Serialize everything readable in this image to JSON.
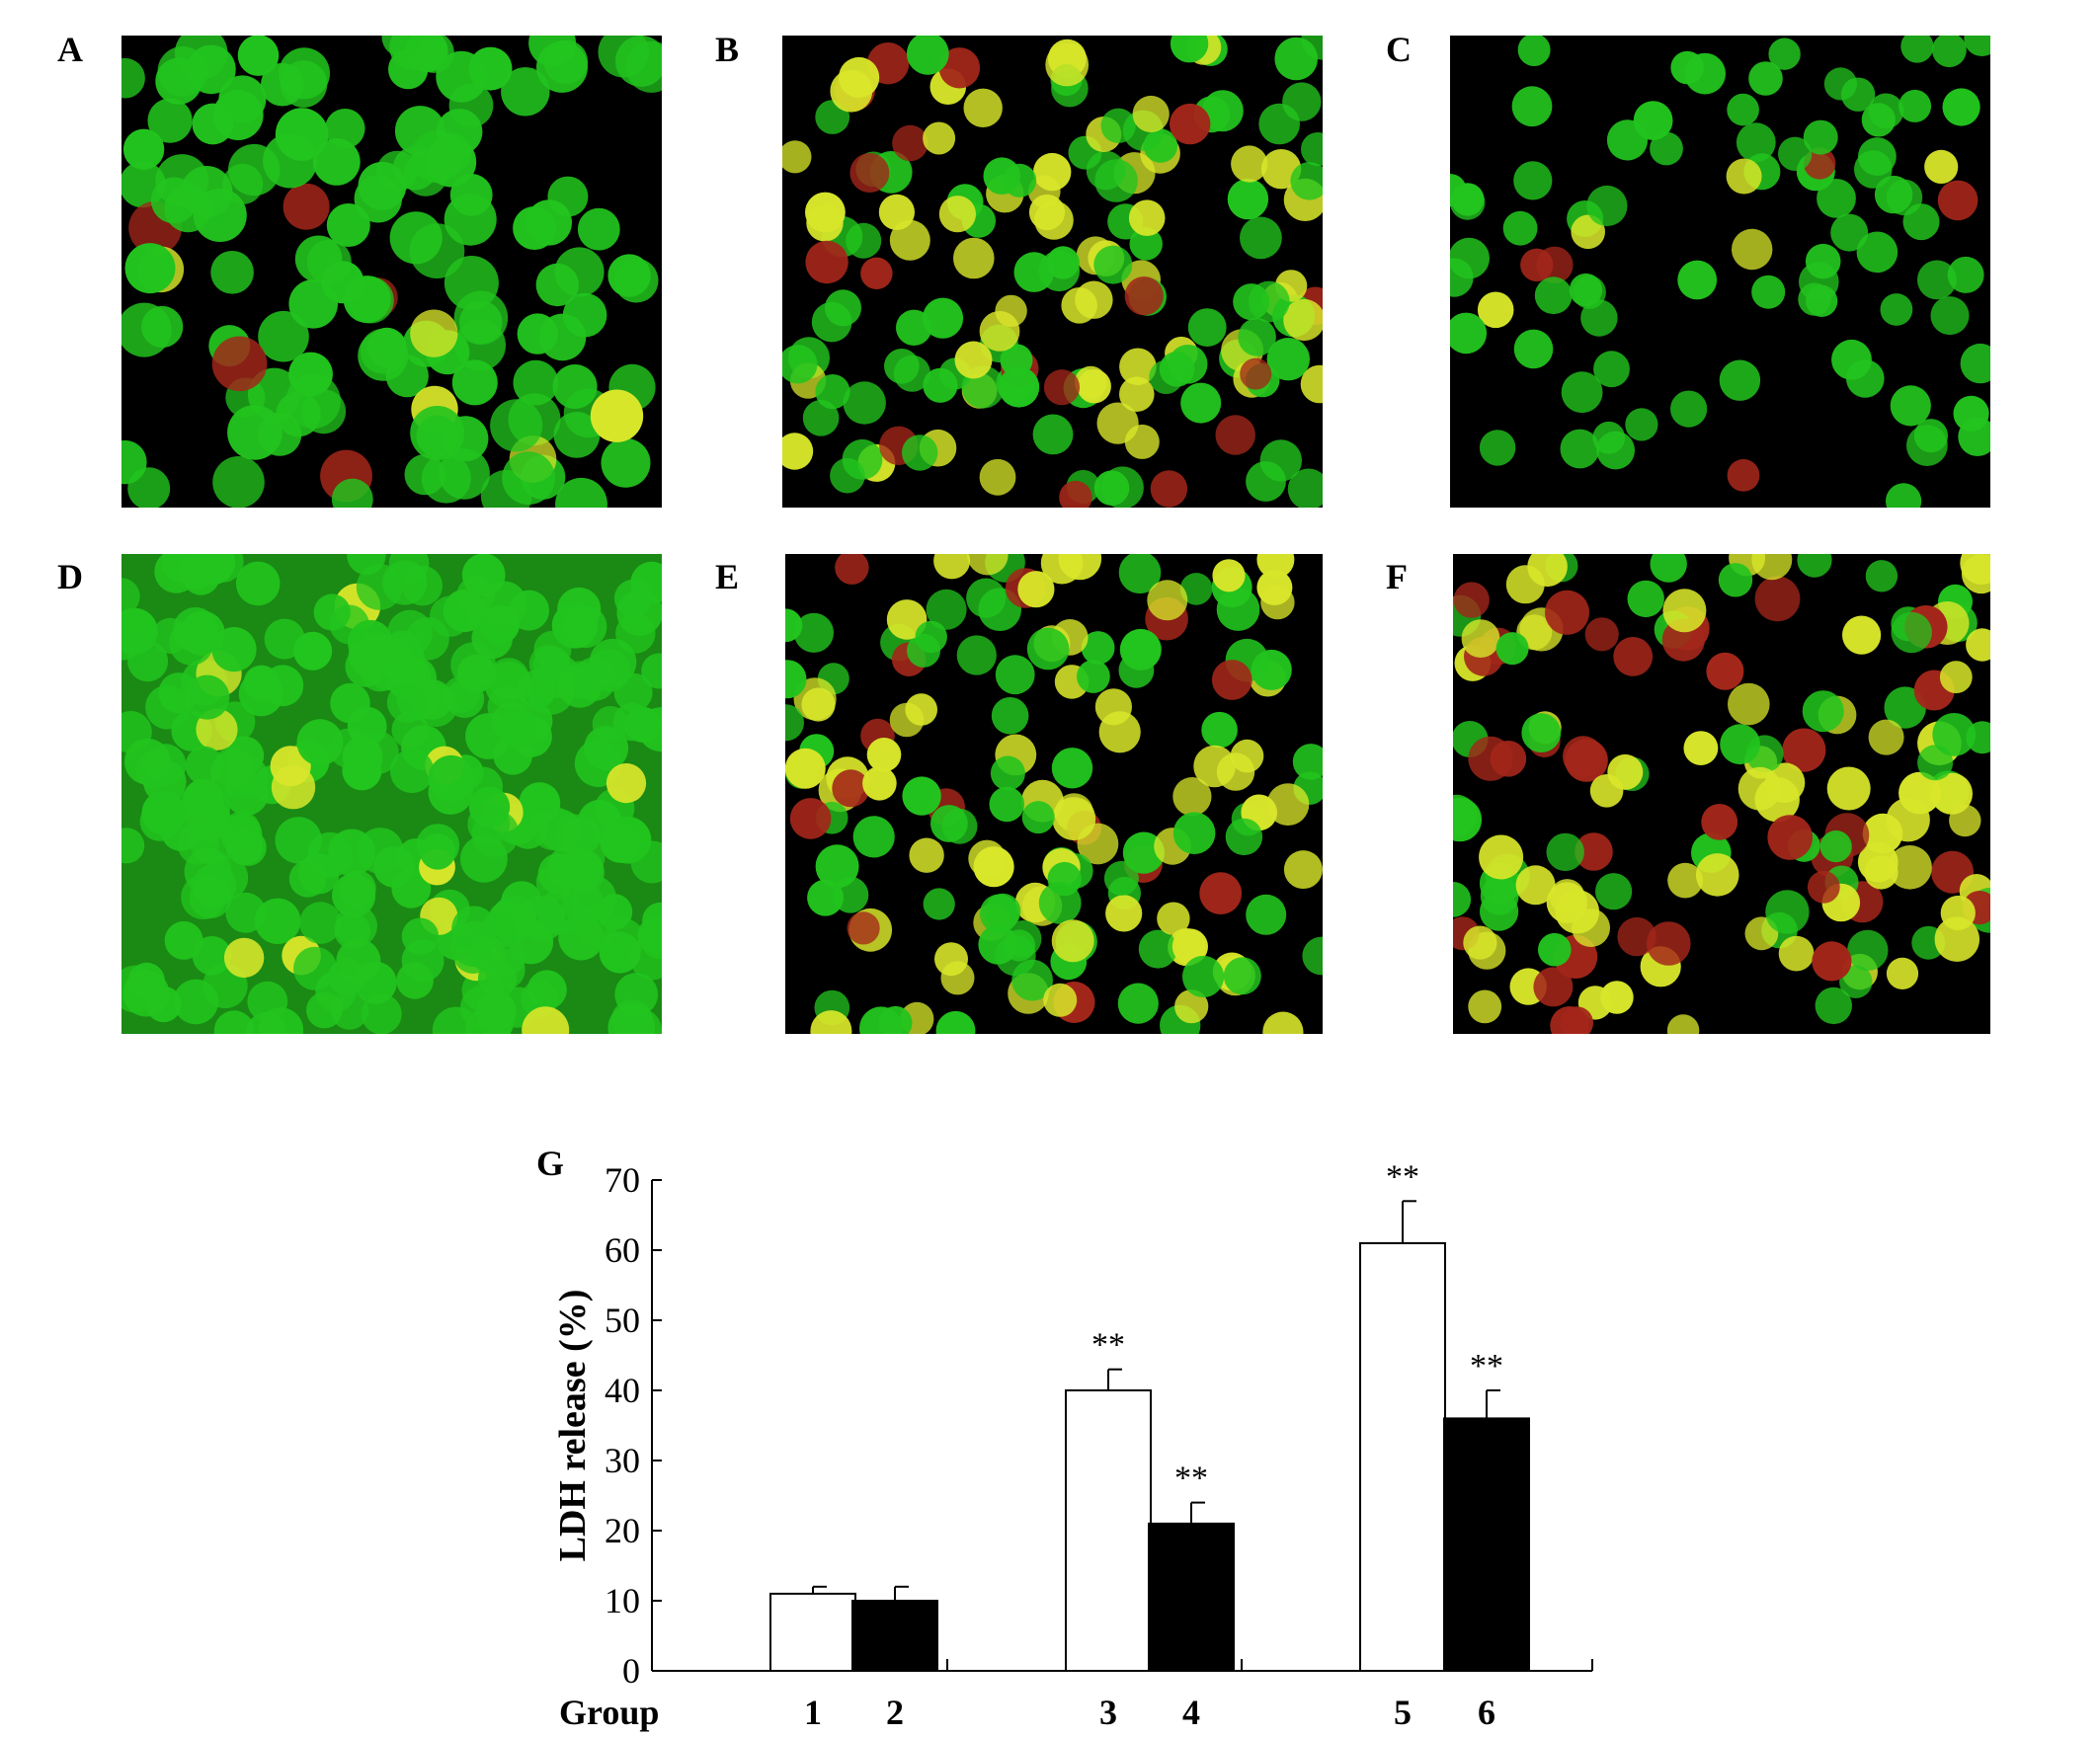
{
  "panels": [
    {
      "label": "A",
      "mix": "green-dense",
      "seed": 11
    },
    {
      "label": "B",
      "mix": "green-yellow-red",
      "seed": 23
    },
    {
      "label": "C",
      "mix": "green-sparse-red",
      "seed": 37
    },
    {
      "label": "D",
      "mix": "green-packed",
      "seed": 41
    },
    {
      "label": "E",
      "mix": "green-yellow-red",
      "seed": 53
    },
    {
      "label": "F",
      "mix": "yellow-red-heavy",
      "seed": 67
    }
  ],
  "colors": {
    "live_green": "#22c41e",
    "yellow": "#d8e62a",
    "dead_red": "#a3261a",
    "bar_open": "#ffffff",
    "bar_filled": "#000000"
  },
  "chart_data": {
    "type": "bar",
    "panel_label": "G",
    "ylabel": "LDH release (%)",
    "xlabel": "Group",
    "ylim": [
      0,
      70
    ],
    "yticks": [
      0,
      10,
      20,
      30,
      40,
      50,
      60,
      70
    ],
    "categories": [
      "1",
      "2",
      "3",
      "4",
      "5",
      "6"
    ],
    "values": [
      11,
      10,
      40,
      21,
      61,
      36
    ],
    "errors": [
      1,
      2,
      3,
      3,
      6,
      4
    ],
    "fills": [
      "open",
      "filled",
      "open",
      "filled",
      "open",
      "filled"
    ],
    "annotations": [
      "",
      "",
      "**",
      "**",
      "**",
      "**"
    ],
    "grid": false
  }
}
